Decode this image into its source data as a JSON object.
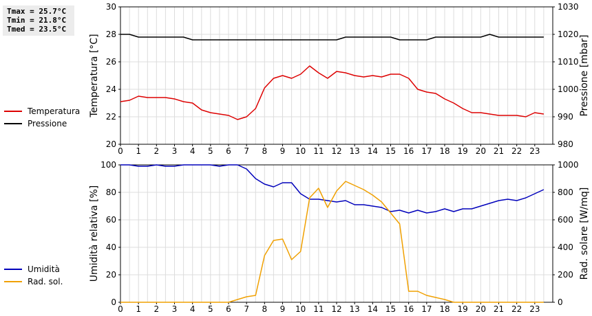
{
  "stats": {
    "tmax": "Tmax = 25.7°C",
    "tmin": "Tmin = 21.8°C",
    "tmed": "Tmed = 23.5°C"
  },
  "chart_data": [
    {
      "type": "line",
      "xlim": [
        0,
        24
      ],
      "x_ticks": [
        "0",
        "1",
        "2",
        "3",
        "4",
        "5",
        "6",
        "7",
        "8",
        "9",
        "10",
        "11",
        "12",
        "13",
        "14",
        "15",
        "16",
        "17",
        "18",
        "19",
        "20",
        "21",
        "22",
        "23"
      ],
      "left_axis": {
        "label": "Temperatura [°C]",
        "ylim": [
          20,
          30
        ],
        "ticks": [
          "20",
          "22",
          "24",
          "26",
          "28",
          "30"
        ]
      },
      "right_axis": {
        "label": "Pressione [mbar]",
        "ylim": [
          980,
          1030
        ],
        "ticks": [
          "980",
          "990",
          "1000",
          "1010",
          "1020",
          "1030"
        ]
      },
      "legend_position": "left, outside",
      "grid": true,
      "series": [
        {
          "name": "Temperatura",
          "axis": "left",
          "color": "#dd0000",
          "x": [
            0,
            0.5,
            1,
            1.5,
            2,
            2.5,
            3,
            3.5,
            4,
            4.5,
            5,
            5.5,
            6,
            6.5,
            7,
            7.5,
            8,
            8.5,
            9,
            9.5,
            10,
            10.5,
            11,
            11.5,
            12,
            12.5,
            13,
            13.5,
            14,
            14.5,
            15,
            15.5,
            16,
            16.5,
            17,
            17.5,
            18,
            18.5,
            19,
            19.5,
            20,
            20.5,
            21,
            21.5,
            22,
            22.5,
            23,
            23.5
          ],
          "values": [
            23.1,
            23.2,
            23.5,
            23.4,
            23.4,
            23.4,
            23.3,
            23.1,
            23.0,
            22.5,
            22.3,
            22.2,
            22.1,
            21.8,
            22.0,
            22.6,
            24.1,
            24.8,
            25.0,
            24.8,
            25.1,
            25.7,
            25.2,
            24.8,
            25.3,
            25.2,
            25.0,
            24.9,
            25.0,
            24.9,
            25.1,
            25.1,
            24.8,
            24.0,
            23.8,
            23.7,
            23.3,
            23.0,
            22.6,
            22.3,
            22.3,
            22.2,
            22.1,
            22.1,
            22.1,
            22.0,
            22.3,
            22.2
          ]
        },
        {
          "name": "Pressione",
          "axis": "right",
          "color": "#000000",
          "x": [
            0,
            0.5,
            1,
            1.5,
            2,
            2.5,
            3,
            3.5,
            4,
            4.5,
            5,
            5.5,
            6,
            6.5,
            7,
            7.5,
            8,
            8.5,
            9,
            9.5,
            10,
            10.5,
            11,
            11.5,
            12,
            12.5,
            13,
            13.5,
            14,
            14.5,
            15,
            15.5,
            16,
            16.5,
            17,
            17.5,
            18,
            18.5,
            19,
            19.5,
            20,
            20.5,
            21,
            21.5,
            22,
            22.5,
            23,
            23.5
          ],
          "values": [
            1020,
            1020,
            1019,
            1019,
            1019,
            1019,
            1019,
            1019,
            1018,
            1018,
            1018,
            1018,
            1018,
            1018,
            1018,
            1018,
            1018,
            1018,
            1018,
            1018,
            1018,
            1018,
            1018,
            1018,
            1018,
            1019,
            1019,
            1019,
            1019,
            1019,
            1019,
            1018,
            1018,
            1018,
            1018,
            1019,
            1019,
            1019,
            1019,
            1019,
            1019,
            1020,
            1019,
            1019,
            1019,
            1019,
            1019,
            1019
          ]
        }
      ]
    },
    {
      "type": "line",
      "xlim": [
        0,
        24
      ],
      "x_ticks": [
        "0",
        "1",
        "2",
        "3",
        "4",
        "5",
        "6",
        "7",
        "8",
        "9",
        "10",
        "11",
        "12",
        "13",
        "14",
        "15",
        "16",
        "17",
        "18",
        "19",
        "20",
        "21",
        "22",
        "23"
      ],
      "left_axis": {
        "label": "Umidità relativa [%]",
        "ylim": [
          0,
          100
        ],
        "ticks": [
          "0",
          "20",
          "40",
          "60",
          "80",
          "100"
        ]
      },
      "right_axis": {
        "label": "Rad. solare [W/mq]",
        "ylim": [
          0,
          1000
        ],
        "ticks": [
          "0",
          "200",
          "400",
          "600",
          "800",
          "1000"
        ]
      },
      "legend_position": "left, outside",
      "grid": true,
      "series": [
        {
          "name": "Umidità",
          "axis": "left",
          "color": "#0000bb",
          "x": [
            0,
            0.5,
            1,
            1.5,
            2,
            2.5,
            3,
            3.5,
            4,
            4.5,
            5,
            5.5,
            6,
            6.5,
            7,
            7.5,
            8,
            8.5,
            9,
            9.5,
            10,
            10.5,
            11,
            11.5,
            12,
            12.5,
            13,
            13.5,
            14,
            14.5,
            15,
            15.5,
            16,
            16.5,
            17,
            17.5,
            18,
            18.5,
            19,
            19.5,
            20,
            20.5,
            21,
            21.5,
            22,
            22.5,
            23,
            23.5
          ],
          "values": [
            100,
            100,
            99,
            99,
            100,
            99,
            99,
            100,
            100,
            100,
            100,
            99,
            100,
            100,
            97,
            90,
            86,
            84,
            87,
            87,
            79,
            75,
            75,
            74,
            73,
            74,
            71,
            71,
            70,
            69,
            66,
            67,
            65,
            67,
            65,
            66,
            68,
            66,
            68,
            68,
            70,
            72,
            74,
            75,
            74,
            76,
            79,
            82
          ]
        },
        {
          "name": "Rad. sol.",
          "axis": "right",
          "color": "#f0a000",
          "x": [
            0,
            0.5,
            1,
            1.5,
            2,
            2.5,
            3,
            3.5,
            4,
            4.5,
            5,
            5.5,
            6,
            6.5,
            7,
            7.5,
            8,
            8.5,
            9,
            9.5,
            10,
            10.5,
            11,
            11.5,
            12,
            12.5,
            13,
            13.5,
            14,
            14.5,
            15,
            15.5,
            16,
            16.5,
            17,
            17.5,
            18,
            18.5,
            19,
            19.5,
            20,
            20.5,
            21,
            21.5,
            22,
            22.5,
            23,
            23.5
          ],
          "values": [
            0,
            0,
            0,
            0,
            0,
            0,
            0,
            0,
            0,
            0,
            0,
            0,
            0,
            20,
            40,
            50,
            340,
            450,
            460,
            310,
            370,
            760,
            830,
            690,
            810,
            880,
            850,
            820,
            780,
            730,
            650,
            570,
            80,
            80,
            50,
            35,
            20,
            0,
            0,
            0,
            0,
            0,
            0,
            0,
            0,
            0,
            0,
            0
          ]
        }
      ]
    }
  ]
}
